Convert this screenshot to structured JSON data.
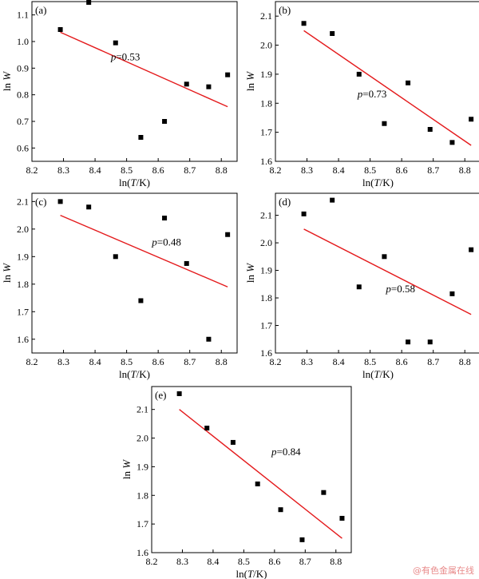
{
  "figure": {
    "xlabel": "ln(T/K)",
    "ylabel": "ln W",
    "watermark": "@有色金属在线",
    "line_color": "#e41a1c",
    "marker_color": "#000000"
  },
  "chart_data": [
    {
      "panel_label": "(a)",
      "type": "scatter",
      "xlim": [
        8.2,
        8.85
      ],
      "ylim": [
        0.55,
        1.15
      ],
      "xticks": [
        8.2,
        8.3,
        8.4,
        8.5,
        8.6,
        8.7,
        8.8
      ],
      "yticks": [
        0.6,
        0.7,
        0.8,
        0.9,
        1.0,
        1.1
      ],
      "xtick_labels": [
        "8.2",
        "8.3",
        "8.4",
        "8.5",
        "8.6",
        "8.7",
        "8.8"
      ],
      "ytick_labels": [
        "0.6",
        "0.7",
        "0.8",
        "0.9",
        "1.0",
        "1.1"
      ],
      "x": [
        8.29,
        8.38,
        8.465,
        8.545,
        8.62,
        8.69,
        8.76,
        8.82
      ],
      "y": [
        1.045,
        1.147,
        0.995,
        0.64,
        0.7,
        0.84,
        0.83,
        0.875
      ],
      "fit": {
        "x": [
          8.29,
          8.82
        ],
        "y": [
          1.035,
          0.755
        ]
      },
      "annotation": {
        "prefix": "p",
        "value": "=0.53",
        "x": 8.45,
        "y": 0.93
      }
    },
    {
      "panel_label": "(b)",
      "type": "scatter",
      "xlim": [
        8.2,
        8.85
      ],
      "ylim": [
        1.6,
        2.15
      ],
      "xticks": [
        8.2,
        8.3,
        8.4,
        8.5,
        8.6,
        8.7,
        8.8
      ],
      "yticks": [
        1.6,
        1.7,
        1.8,
        1.9,
        2.0,
        2.1
      ],
      "xtick_labels": [
        "8.2",
        "8.3",
        "8.4",
        "8.5",
        "8.6",
        "8.7",
        "8.8"
      ],
      "ytick_labels": [
        "1.6",
        "1.7",
        "1.8",
        "1.9",
        "2.0",
        "2.1"
      ],
      "x": [
        8.29,
        8.38,
        8.465,
        8.545,
        8.62,
        8.69,
        8.76,
        8.82
      ],
      "y": [
        2.075,
        2.04,
        1.9,
        1.73,
        1.87,
        1.71,
        1.665,
        1.745
      ],
      "fit": {
        "x": [
          8.29,
          8.82
        ],
        "y": [
          2.05,
          1.655
        ]
      },
      "annotation": {
        "prefix": "p",
        "value": "=0.73",
        "x": 8.46,
        "y": 1.82
      }
    },
    {
      "panel_label": "(c)",
      "type": "scatter",
      "xlim": [
        8.2,
        8.85
      ],
      "ylim": [
        1.55,
        2.13
      ],
      "xticks": [
        8.2,
        8.3,
        8.4,
        8.5,
        8.6,
        8.7,
        8.8
      ],
      "yticks": [
        1.6,
        1.7,
        1.8,
        1.9,
        2.0,
        2.1
      ],
      "xtick_labels": [
        "8.2",
        "8.3",
        "8.4",
        "8.5",
        "8.6",
        "8.7",
        "8.8"
      ],
      "ytick_labels": [
        "1.6",
        "1.7",
        "1.8",
        "1.9",
        "2.0",
        "2.1"
      ],
      "x": [
        8.29,
        8.38,
        8.465,
        8.545,
        8.62,
        8.69,
        8.76,
        8.82
      ],
      "y": [
        2.1,
        2.08,
        1.9,
        1.74,
        2.04,
        1.875,
        1.6,
        1.98
      ],
      "fit": {
        "x": [
          8.29,
          8.82
        ],
        "y": [
          2.05,
          1.79
        ]
      },
      "annotation": {
        "prefix": "p",
        "value": "=0.48",
        "x": 8.58,
        "y": 1.94
      }
    },
    {
      "panel_label": "(d)",
      "type": "scatter",
      "xlim": [
        8.2,
        8.85
      ],
      "ylim": [
        1.6,
        2.18
      ],
      "xticks": [
        8.2,
        8.3,
        8.4,
        8.5,
        8.6,
        8.7,
        8.8
      ],
      "yticks": [
        1.6,
        1.7,
        1.8,
        1.9,
        2.0,
        2.1
      ],
      "xtick_labels": [
        "8.2",
        "8.3",
        "8.4",
        "8.5",
        "8.6",
        "8.7",
        "8.8"
      ],
      "ytick_labels": [
        "1.6",
        "1.7",
        "1.8",
        "1.9",
        "2.0",
        "2.1"
      ],
      "x": [
        8.29,
        8.38,
        8.465,
        8.545,
        8.62,
        8.69,
        8.76,
        8.82
      ],
      "y": [
        2.105,
        2.155,
        1.84,
        1.95,
        1.64,
        1.64,
        1.815,
        1.975
      ],
      "fit": {
        "x": [
          8.29,
          8.82
        ],
        "y": [
          2.05,
          1.74
        ]
      },
      "annotation": {
        "prefix": "p",
        "value": "=0.58",
        "x": 8.55,
        "y": 1.82
      }
    },
    {
      "panel_label": "(e)",
      "type": "scatter",
      "xlim": [
        8.2,
        8.85
      ],
      "ylim": [
        1.6,
        2.18
      ],
      "xticks": [
        8.2,
        8.3,
        8.4,
        8.5,
        8.6,
        8.7,
        8.8
      ],
      "yticks": [
        1.6,
        1.7,
        1.8,
        1.9,
        2.0,
        2.1
      ],
      "xtick_labels": [
        "8.2",
        "8.3",
        "8.4",
        "8.5",
        "8.6",
        "8.7",
        "8.8"
      ],
      "ytick_labels": [
        "1.6",
        "1.7",
        "1.8",
        "1.9",
        "2.0",
        "2.1"
      ],
      "x": [
        8.29,
        8.38,
        8.465,
        8.545,
        8.62,
        8.69,
        8.76,
        8.82
      ],
      "y": [
        2.155,
        2.035,
        1.985,
        1.84,
        1.75,
        1.645,
        1.81,
        1.72
      ],
      "fit": {
        "x": [
          8.29,
          8.82
        ],
        "y": [
          2.1,
          1.65
        ]
      },
      "annotation": {
        "prefix": "p",
        "value": "=0.84",
        "x": 8.59,
        "y": 1.94
      }
    }
  ]
}
